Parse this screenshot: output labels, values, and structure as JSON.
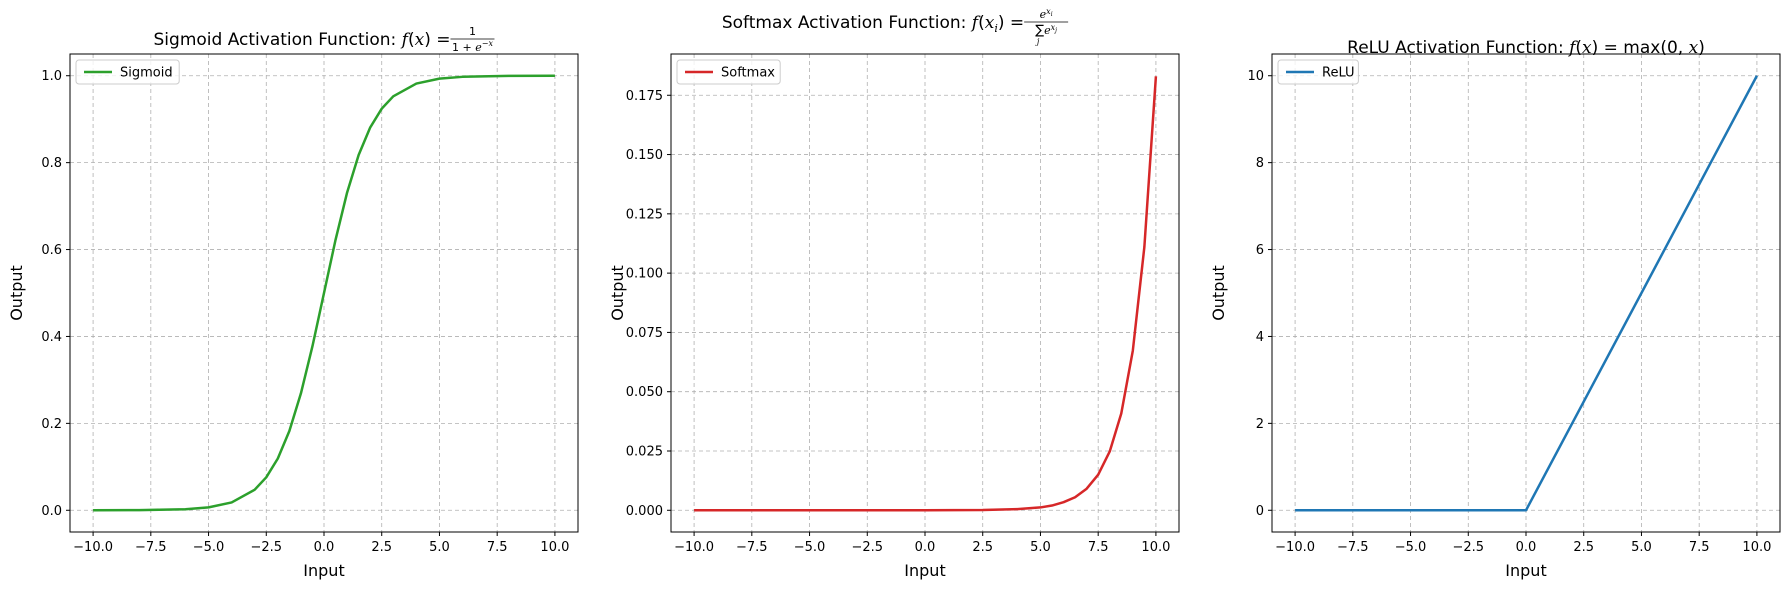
{
  "chart_data": [
    {
      "type": "line",
      "title": "Sigmoid Activation Function: f(x) = 1/(1+e^{-x})",
      "title_text": "Sigmoid Activation Function: ",
      "xlabel": "Input",
      "ylabel": "Output",
      "xlim": [
        -11,
        11
      ],
      "ylim": [
        -0.05,
        1.05
      ],
      "xticks": [
        -10.0,
        -7.5,
        -5.0,
        -2.5,
        0.0,
        2.5,
        5.0,
        7.5,
        10.0
      ],
      "xtick_labels": [
        "−10.0",
        "−7.5",
        "−5.0",
        "−2.5",
        "0.0",
        "2.5",
        "5.0",
        "7.5",
        "10.0"
      ],
      "yticks": [
        0.0,
        0.2,
        0.4,
        0.6,
        0.8,
        1.0
      ],
      "ytick_labels": [
        "0.0",
        "0.2",
        "0.4",
        "0.6",
        "0.8",
        "1.0"
      ],
      "grid": true,
      "legend": "upper-left",
      "series": [
        {
          "name": "Sigmoid",
          "color": "#2ca02c",
          "x": [
            -10,
            -8,
            -6,
            -5,
            -4,
            -3,
            -2.5,
            -2,
            -1.5,
            -1,
            -0.5,
            0,
            0.5,
            1,
            1.5,
            2,
            2.5,
            3,
            4,
            5,
            6,
            8,
            10
          ],
          "y": [
            4.54e-05,
            0.000335,
            0.00247,
            0.00669,
            0.018,
            0.0474,
            0.0759,
            0.1192,
            0.1824,
            0.2689,
            0.3775,
            0.5,
            0.6225,
            0.7311,
            0.8176,
            0.8808,
            0.9241,
            0.9526,
            0.982,
            0.9933,
            0.9975,
            0.9997,
            0.99995
          ]
        }
      ]
    },
    {
      "type": "line",
      "title": "Softmax Activation Function: f(x_i) = e^{x_i} / Σ_j e^{x_j}",
      "title_text": "Softmax Activation Function: ",
      "xlabel": "Input",
      "ylabel": "Output",
      "xlim": [
        -11,
        11
      ],
      "ylim": [
        -0.00916,
        0.1924
      ],
      "xticks": [
        -10.0,
        -7.5,
        -5.0,
        -2.5,
        0.0,
        2.5,
        5.0,
        7.5,
        10.0
      ],
      "xtick_labels": [
        "−10.0",
        "−7.5",
        "−5.0",
        "−2.5",
        "0.0",
        "2.5",
        "5.0",
        "7.5",
        "10.0"
      ],
      "yticks": [
        0.0,
        0.025,
        0.05,
        0.075,
        0.1,
        0.125,
        0.15,
        0.175
      ],
      "ytick_labels": [
        "0.000",
        "0.025",
        "0.050",
        "0.075",
        "0.100",
        "0.125",
        "0.150",
        "0.175"
      ],
      "grid": true,
      "legend": "upper-left",
      "series": [
        {
          "name": "Softmax",
          "color": "#d62728",
          "x": [
            -10,
            -5,
            0,
            2.5,
            4,
            5,
            5.5,
            6,
            6.5,
            7,
            7.5,
            8,
            8.5,
            9,
            9.5,
            10
          ],
          "y": [
            0.0,
            0.0,
            8e-06,
            0.0001,
            0.0005,
            0.0012,
            0.002,
            0.0034,
            0.0055,
            0.0091,
            0.015,
            0.0248,
            0.0408,
            0.0673,
            0.111,
            0.183
          ]
        }
      ]
    },
    {
      "type": "line",
      "title": "ReLU Activation Function: f(x) = max(0, x)",
      "title_text": "ReLU Activation Function: ",
      "xlabel": "Input",
      "ylabel": "Output",
      "xlim": [
        -11,
        11
      ],
      "ylim": [
        -0.5,
        10.5
      ],
      "xticks": [
        -10.0,
        -7.5,
        -5.0,
        -2.5,
        0.0,
        2.5,
        5.0,
        7.5,
        10.0
      ],
      "xtick_labels": [
        "−10.0",
        "−7.5",
        "−5.0",
        "−2.5",
        "0.0",
        "2.5",
        "5.0",
        "7.5",
        "10.0"
      ],
      "yticks": [
        0,
        2,
        4,
        6,
        8,
        10
      ],
      "ytick_labels": [
        "0",
        "2",
        "4",
        "6",
        "8",
        "10"
      ],
      "grid": true,
      "legend": "upper-left",
      "series": [
        {
          "name": "ReLU",
          "color": "#1f77b4",
          "x": [
            -10,
            -0.1,
            0,
            10
          ],
          "y": [
            0,
            0,
            0,
            10
          ]
        }
      ]
    }
  ]
}
